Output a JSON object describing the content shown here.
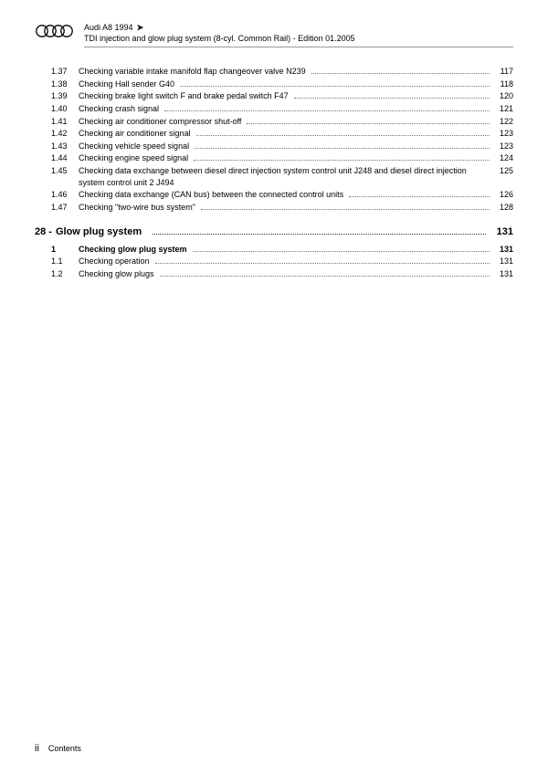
{
  "header": {
    "title": "Audi A8 1994",
    "arrow": "➤",
    "subtitle": "TDI injection and glow plug system (8-cyl. Common Rail) - Edition 01.2005"
  },
  "toc_group1": [
    {
      "num": "1.37",
      "label": "Checking variable intake manifold flap changeover valve N239",
      "page": "117"
    },
    {
      "num": "1.38",
      "label": "Checking Hall sender G40",
      "page": "118"
    },
    {
      "num": "1.39",
      "label": "Checking brake light switch F and brake pedal switch F47",
      "page": "120"
    },
    {
      "num": "1.40",
      "label": "Checking crash signal",
      "page": "121"
    },
    {
      "num": "1.41",
      "label": "Checking air conditioner compressor shut-off",
      "page": "122"
    },
    {
      "num": "1.42",
      "label": "Checking air conditioner signal",
      "page": "123"
    },
    {
      "num": "1.43",
      "label": "Checking vehicle speed signal",
      "page": "123"
    },
    {
      "num": "1.44",
      "label": "Checking engine speed signal",
      "page": "124"
    },
    {
      "num": "1.45",
      "label": "Checking data exchange between diesel direct injection system control unit J248 and diesel direct injection system control unit 2 J494",
      "page": "125"
    },
    {
      "num": "1.46",
      "label": "Checking data exchange (CAN bus) between the connected control units",
      "page": "126"
    },
    {
      "num": "1.47",
      "label": "Checking \"two-wire bus system\"",
      "page": "128"
    }
  ],
  "chapter": {
    "num": "28 -",
    "title": "Glow plug system",
    "page": "131"
  },
  "toc_group2": [
    {
      "num": "1",
      "label": "Checking glow plug system",
      "page": "131",
      "bold": true
    },
    {
      "num": "1.1",
      "label": "Checking operation",
      "page": "131"
    },
    {
      "num": "1.2",
      "label": "Checking glow plugs",
      "page": "131"
    }
  ],
  "footer": {
    "pagenum": "ii",
    "label": "Contents"
  },
  "colors": {
    "text": "#000000",
    "rule": "#999999",
    "dots": "#777777",
    "bg": "#ffffff"
  }
}
